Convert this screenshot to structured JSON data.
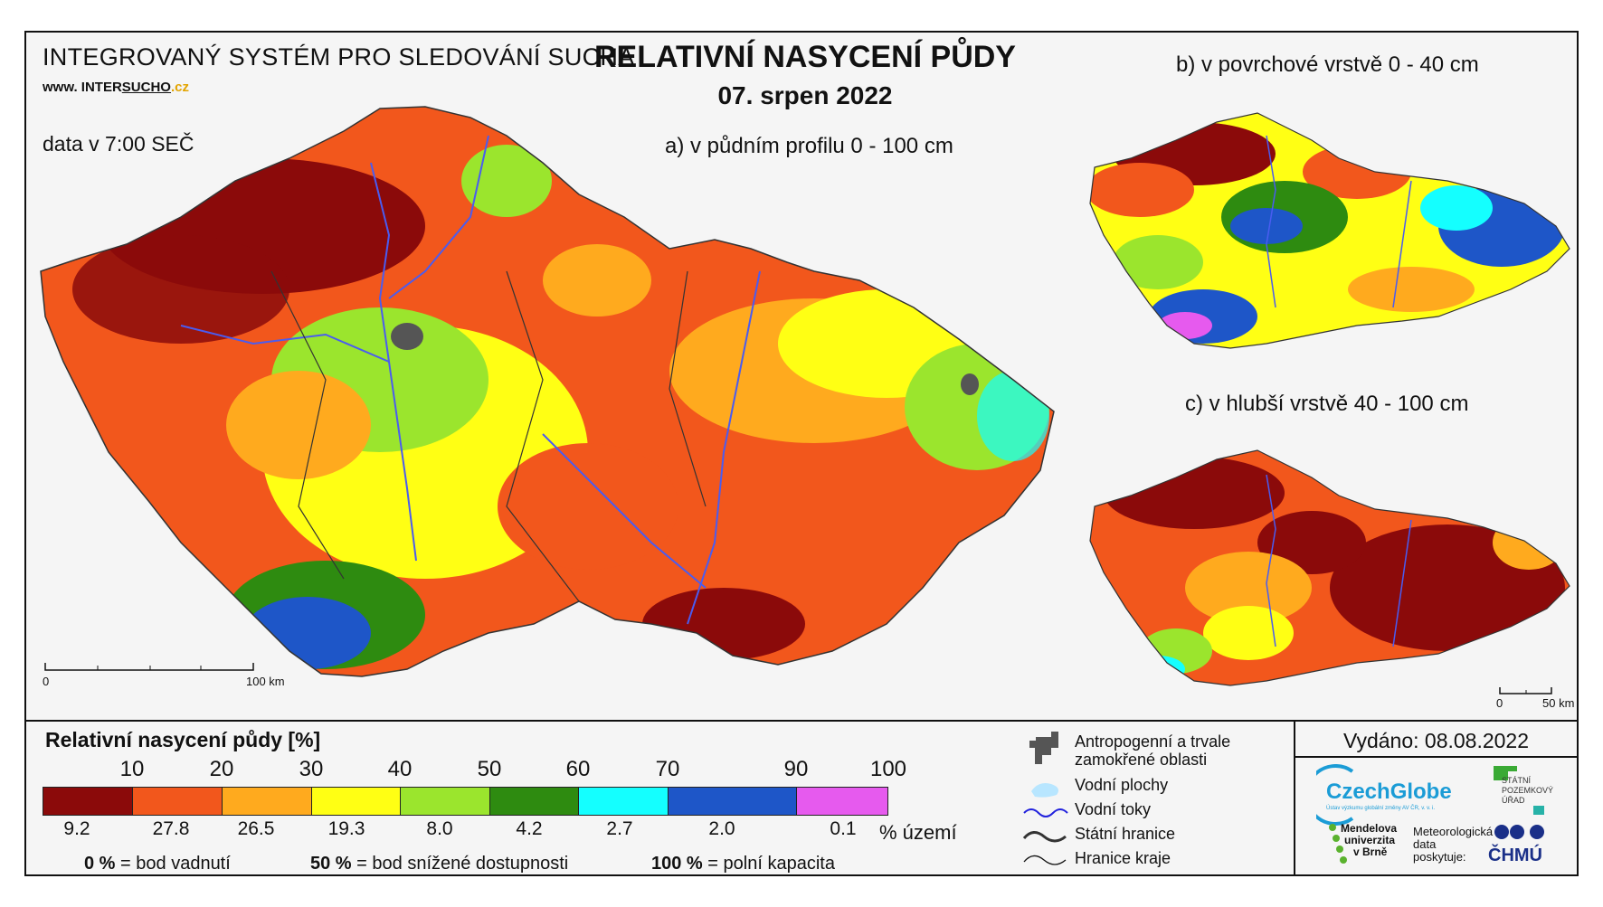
{
  "header": {
    "system": "INTEGROVANÝ SYSTÉM PRO SLEDOVÁNÍ SUCHA",
    "url_prefix": "www. INTER",
    "url_mid": "SUCHO",
    "url_suffix": ".cz",
    "data_time": "data v 7:00 SEČ",
    "title": "RELATIVNÍ NASYCENÍ PŮDY",
    "date": "07. srpen 2022"
  },
  "maps": {
    "a_label": "a) v půdním profilu 0 - 100 cm",
    "b_label": "b) v povrchové vrstvě 0 - 40 cm",
    "c_label": "c) v hlubší vrstvě 40 - 100 cm",
    "scale_main": {
      "zero": "0",
      "end": "100 km"
    },
    "scale_small": {
      "zero": "0",
      "end": "50 km"
    }
  },
  "legend": {
    "title": "Relativní nasycení půdy [%]",
    "ticks": [
      "10",
      "20",
      "30",
      "40",
      "50",
      "60",
      "70",
      "90",
      "100"
    ],
    "classes": [
      {
        "color": "#8b0a0a",
        "pct": "9.2"
      },
      {
        "color": "#f2571c",
        "pct": "27.8"
      },
      {
        "color": "#ffaa1e",
        "pct": "26.5"
      },
      {
        "color": "#ffff14",
        "pct": "19.3"
      },
      {
        "color": "#9be52d",
        "pct": "8.0"
      },
      {
        "color": "#2e8b10",
        "pct": "4.2"
      },
      {
        "color": "#14ffff",
        "pct": "2.7"
      },
      {
        "color": "#1e56c8",
        "pct": "2.0"
      },
      {
        "color": "#e65aee",
        "pct": "0.1"
      }
    ],
    "pct_unit": "% území",
    "defs": [
      {
        "value": "0 %",
        "text": "= bod vadnutí"
      },
      {
        "value": "50 %",
        "text": "= bod snížené dostupnosti"
      },
      {
        "value": "100 %",
        "text": "= polní kapacita"
      }
    ]
  },
  "symbols": {
    "anthropogenic": "Antropogenní a trvale zamokřené oblasti",
    "water_areas": "Vodní plochy",
    "rivers": "Vodní toky",
    "state_border": "Státní hranice",
    "region_border": "Hranice kraje"
  },
  "issued": "Vydáno: 08.08.2022",
  "logos": {
    "czechglobe": "CzechGlobe",
    "czechglobe_sub": "Ústav výzkumu globální změny AV ČR, v. v. i.",
    "spu": [
      "STÁTNÍ",
      "POZEMKOVÝ",
      "ÚŘAD"
    ],
    "mendel": [
      "Mendelova",
      "univerzita",
      "v Brně"
    ],
    "met": [
      "Meteorologická",
      "data",
      "poskytuje:"
    ],
    "chmu": "ČHMÚ"
  }
}
